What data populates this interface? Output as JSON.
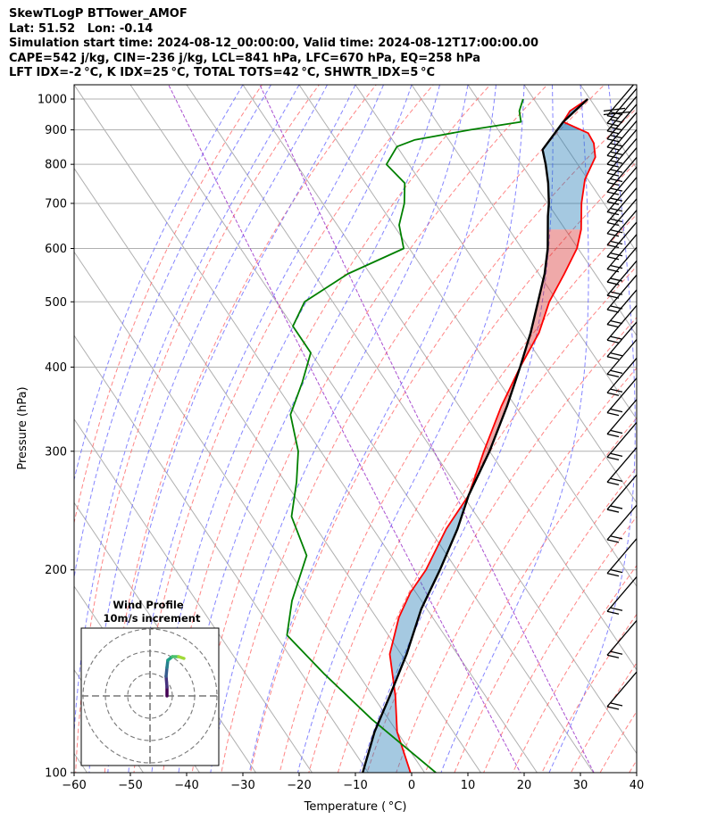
{
  "header": {
    "lines": [
      "SkewTLogP BTTower_AMOF",
      "Lat: 51.52   Lon: -0.14",
      "Simulation start time: 2024-08-12_00:00:00, Valid time: 2024-08-12T17:00:00.00",
      "CAPE=542 j/kg, CIN=-236 j/kg, LCL=841 hPa, LFC=670 hPa, EQ=258 hPa",
      "LFT IDX=-2 °C, K IDX=25 °C, TOTAL TOTS=42 °C, SHWTR_IDX=5 °C"
    ]
  },
  "chart_data": {
    "type": "line",
    "subtype": "skew-t log-p",
    "xlabel": "Temperature ( °C)",
    "ylabel": "Pressure (hPa)",
    "xlim": [
      -60,
      40
    ],
    "ylim": [
      1050,
      100
    ],
    "y_scale": "log",
    "x_ticks": [
      "−60",
      "−50",
      "−40",
      "−30",
      "−20",
      "−10",
      "0",
      "10",
      "20",
      "30",
      "40"
    ],
    "y_ticks": [
      "100",
      "200",
      "300",
      "400",
      "500",
      "600",
      "700",
      "800",
      "900",
      "1000"
    ],
    "grid": true,
    "colors": {
      "temperature": "#ff0000",
      "dewpoint": "#008000",
      "parcel": "#000000",
      "cape_fill": "#1f77b4",
      "cin_fill": "#d62728",
      "dry_adiabat": "#ff6666",
      "moist_adiabat": "#6666ff",
      "mixing_ratio": "#9b30c8",
      "isotherm": "#b0b0b0"
    },
    "series": [
      {
        "role": "temperature",
        "points": [
          [
            1000,
            29.6
          ],
          [
            960,
            25
          ],
          [
            925,
            22.5
          ],
          [
            890,
            25.6
          ],
          [
            860,
            25.4
          ],
          [
            820,
            24
          ],
          [
            760,
            19.5
          ],
          [
            700,
            16
          ],
          [
            640,
            12.8
          ],
          [
            600,
            9.8
          ],
          [
            550,
            4.5
          ],
          [
            500,
            -1.5
          ],
          [
            450,
            -7
          ],
          [
            400,
            -14.5
          ],
          [
            350,
            -22.5
          ],
          [
            300,
            -31
          ],
          [
            258,
            -39
          ],
          [
            230,
            -47
          ],
          [
            200,
            -55.5
          ],
          [
            185,
            -61
          ],
          [
            170,
            -66
          ],
          [
            150,
            -72
          ],
          [
            130,
            -76
          ],
          [
            115,
            -80
          ],
          [
            100,
            -82.5
          ]
        ]
      },
      {
        "role": "dewpoint",
        "points": [
          [
            1000,
            18.1
          ],
          [
            960,
            16
          ],
          [
            925,
            15
          ],
          [
            900,
            5
          ],
          [
            870,
            -6
          ],
          [
            850,
            -10
          ],
          [
            800,
            -14
          ],
          [
            750,
            -13
          ],
          [
            700,
            -15.5
          ],
          [
            650,
            -19
          ],
          [
            600,
            -21
          ],
          [
            550,
            -34
          ],
          [
            500,
            -45
          ],
          [
            460,
            -50
          ],
          [
            420,
            -50
          ],
          [
            380,
            -55
          ],
          [
            340,
            -61
          ],
          [
            300,
            -64
          ],
          [
            270,
            -68
          ],
          [
            240,
            -73
          ],
          [
            210,
            -75
          ],
          [
            180,
            -83
          ],
          [
            160,
            -88
          ],
          [
            140,
            -86
          ],
          [
            120,
            -83
          ],
          [
            100,
            -78
          ]
        ]
      },
      {
        "role": "parcel",
        "points": [
          [
            1000,
            29.6
          ],
          [
            925,
            22.5
          ],
          [
            841,
            15.5
          ],
          [
            800,
            14.3
          ],
          [
            750,
            12.5
          ],
          [
            700,
            10.2
          ],
          [
            670,
            8.5
          ],
          [
            600,
            4.6
          ],
          [
            550,
            1
          ],
          [
            500,
            -3.5
          ],
          [
            450,
            -8.5
          ],
          [
            400,
            -14.5
          ],
          [
            350,
            -21.5
          ],
          [
            300,
            -30
          ],
          [
            258,
            -39
          ],
          [
            230,
            -45
          ],
          [
            200,
            -53
          ],
          [
            175,
            -61
          ],
          [
            150,
            -69
          ],
          [
            130,
            -77
          ],
          [
            115,
            -84
          ],
          [
            100,
            -91
          ]
        ]
      }
    ],
    "inset": {
      "title": "Wind Profile",
      "subtitle": "10m/s increment",
      "rings": 3
    },
    "wind_barbs": {
      "levels": [
        100,
        200,
        300,
        400,
        500,
        600,
        700,
        800,
        900,
        1000
      ]
    }
  }
}
